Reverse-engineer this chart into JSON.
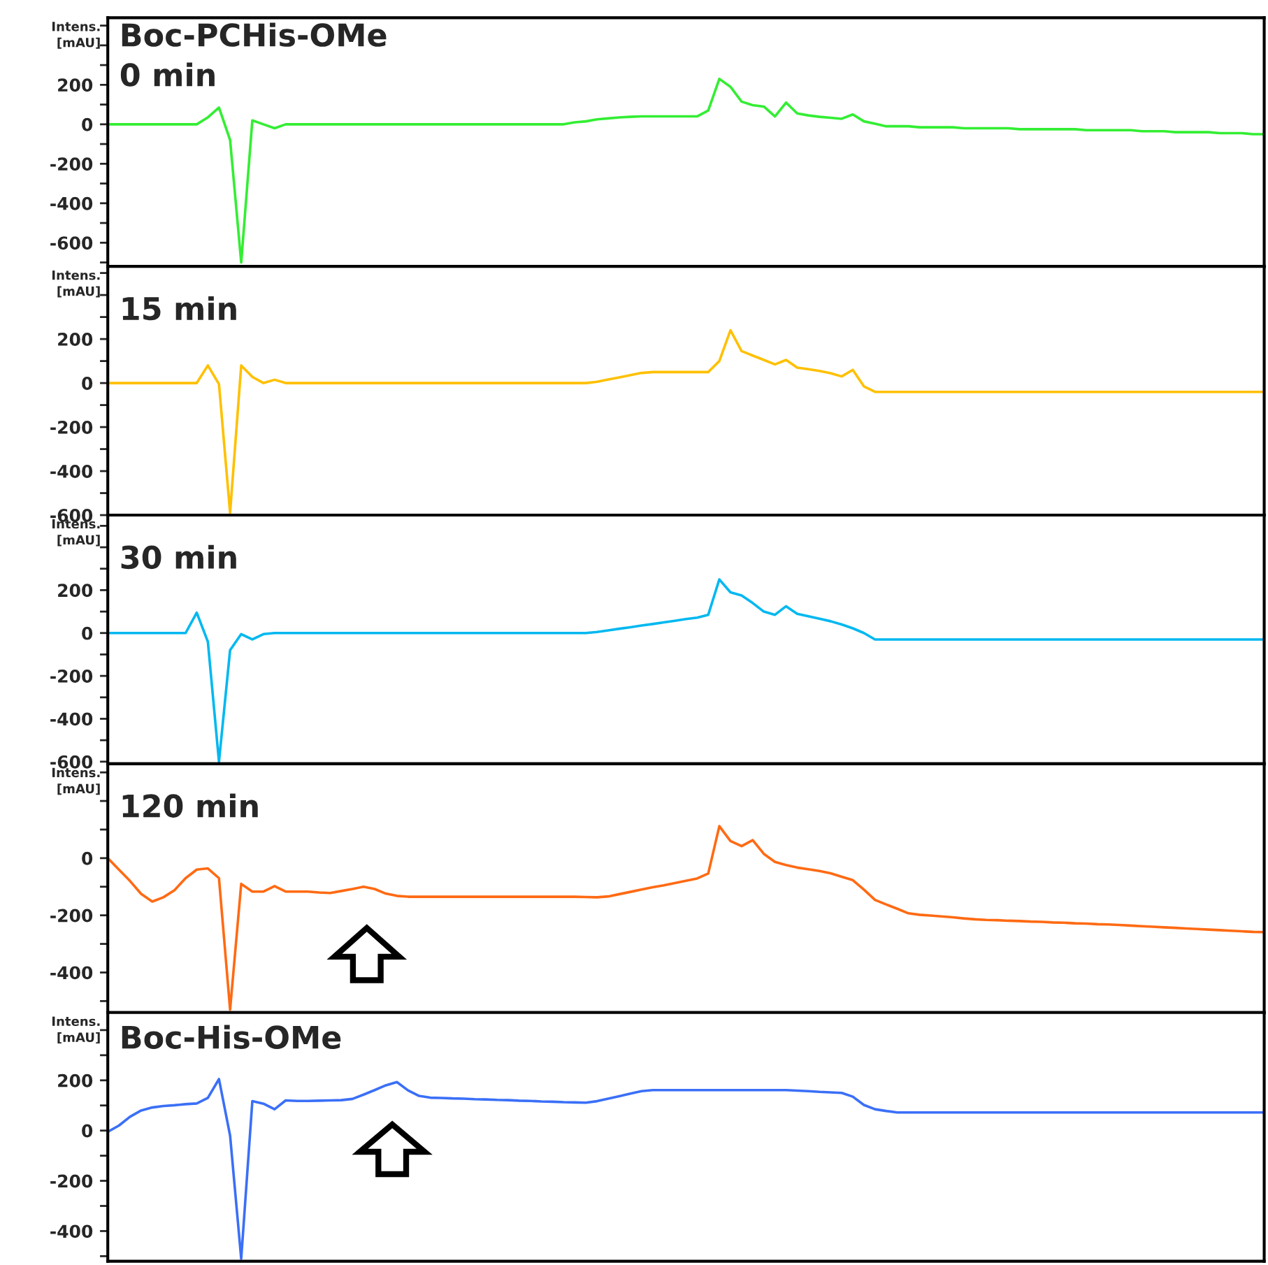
{
  "chart_data": [
    {
      "type": "line",
      "title": "Boc-PCHis-OMe",
      "subtitle": "0 min",
      "ylabel": "Intens.\n[mAU]",
      "ylim": [
        -720,
        540
      ],
      "tick_labels": "y",
      "grid": false,
      "legend": false,
      "categories": [
        null,
        null,
        null,
        null,
        null,
        null,
        null,
        null,
        null,
        null,
        null,
        null,
        null,
        null,
        null,
        null,
        null,
        null,
        null,
        null,
        null,
        null,
        null,
        null,
        null,
        null,
        null,
        null,
        null,
        null,
        null,
        null,
        null,
        null,
        null,
        null,
        null,
        null,
        null,
        null,
        null,
        null,
        null,
        null,
        null,
        null,
        null,
        null,
        null,
        null,
        null,
        null,
        null,
        null,
        null,
        null,
        null,
        null,
        null,
        null,
        null,
        null,
        null,
        null,
        null,
        null,
        null,
        null,
        null,
        null,
        null,
        null,
        null,
        null,
        null,
        null,
        null,
        null,
        null,
        null,
        null,
        null,
        null,
        null,
        null,
        null,
        null,
        null,
        null,
        null,
        null,
        null,
        null,
        null,
        null,
        null,
        null,
        null,
        null,
        null,
        null,
        null,
        null,
        null,
        null
      ],
      "yticks": [
        {
          "value": -700,
          "label": null
        },
        -600,
        {
          "value": -500,
          "label": null
        },
        -400,
        {
          "value": -300,
          "label": null
        },
        -200,
        {
          "value": -100,
          "label": null
        },
        0,
        {
          "value": 100,
          "label": null
        },
        200,
        {
          "value": 300,
          "label": null
        },
        {
          "value": 400,
          "label": null
        },
        {
          "value": 500,
          "label": null
        }
      ],
      "series": [
        {
          "color": "#33ee33",
          "values": [
            0,
            0,
            0,
            0,
            0,
            0,
            0,
            0,
            0,
            35,
            85,
            -80,
            -700,
            20,
            0,
            -20,
            0,
            0,
            0,
            0,
            0,
            0,
            0,
            0,
            0,
            0,
            0,
            0,
            0,
            0,
            0,
            0,
            0,
            0,
            0,
            0,
            0,
            0,
            0,
            0,
            0,
            0,
            10,
            15,
            25,
            30,
            35,
            38,
            40,
            40,
            40,
            40,
            40,
            40,
            70,
            230,
            190,
            115,
            97,
            90,
            40,
            110,
            55,
            45,
            38,
            33,
            28,
            50,
            15,
            3,
            -10,
            -10,
            -10,
            -15,
            -15,
            -15,
            -15,
            -20,
            -20,
            -20,
            -20,
            -20,
            -25,
            -25,
            -25,
            -25,
            -25,
            -25,
            -30,
            -30,
            -30,
            -30,
            -30,
            -35,
            -35,
            -35,
            -40,
            -40,
            -40,
            -40,
            -45,
            -45,
            -45,
            -50,
            -50
          ]
        }
      ]
    },
    {
      "type": "line",
      "title": "15 min",
      "ylabel": "Intens.\n[mAU]",
      "ylim": [
        -600,
        530
      ],
      "tick_labels": "y",
      "grid": false,
      "legend": false,
      "categories": [
        null,
        null,
        null,
        null,
        null,
        null,
        null,
        null,
        null,
        null,
        null,
        null,
        null,
        null,
        null,
        null,
        null,
        null,
        null,
        null,
        null,
        null,
        null,
        null,
        null,
        null,
        null,
        null,
        null,
        null,
        null,
        null,
        null,
        null,
        null,
        null,
        null,
        null,
        null,
        null,
        null,
        null,
        null,
        null,
        null,
        null,
        null,
        null,
        null,
        null,
        null,
        null,
        null,
        null,
        null,
        null,
        null,
        null,
        null,
        null,
        null,
        null,
        null,
        null,
        null,
        null,
        null,
        null,
        null,
        null,
        null,
        null,
        null,
        null,
        null,
        null,
        null,
        null,
        null,
        null,
        null,
        null,
        null,
        null,
        null,
        null,
        null,
        null,
        null,
        null,
        null,
        null,
        null,
        null,
        null,
        null,
        null,
        null,
        null,
        null,
        null,
        null,
        null,
        null,
        null
      ],
      "yticks": [
        -600,
        {
          "value": -500,
          "label": null
        },
        -400,
        {
          "value": -300,
          "label": null
        },
        -200,
        {
          "value": -100,
          "label": null
        },
        0,
        {
          "value": 100,
          "label": null
        },
        200,
        {
          "value": 300,
          "label": null
        },
        {
          "value": 400,
          "label": null
        },
        {
          "value": 500,
          "label": null
        }
      ],
      "series": [
        {
          "color": "#ffc000",
          "values": [
            0,
            0,
            0,
            0,
            0,
            0,
            0,
            0,
            0,
            80,
            -5,
            -590,
            80,
            28,
            0,
            15,
            0,
            0,
            0,
            0,
            0,
            0,
            0,
            0,
            0,
            0,
            0,
            0,
            0,
            0,
            0,
            0,
            0,
            0,
            0,
            0,
            0,
            0,
            0,
            0,
            0,
            0,
            0,
            0,
            6,
            16,
            26,
            36,
            46,
            50,
            50,
            50,
            50,
            50,
            50,
            100,
            240,
            145,
            125,
            105,
            85,
            105,
            70,
            63,
            55,
            45,
            30,
            60,
            -15,
            -40,
            -40,
            -40,
            -40,
            -40,
            -40,
            -40,
            -40,
            -40,
            -40,
            -40,
            -40,
            -40,
            -40,
            -40,
            -40,
            -40,
            -40,
            -40,
            -40,
            -40,
            -40,
            -40,
            -40,
            -40,
            -40,
            -40,
            -40,
            -40,
            -40,
            -40,
            -40,
            -40,
            -40,
            -40,
            -40
          ]
        }
      ]
    },
    {
      "type": "line",
      "title": "30 min",
      "ylabel": "Intens.\n[mAU]",
      "ylim": [
        -610,
        550
      ],
      "tick_labels": "y",
      "grid": false,
      "legend": false,
      "categories": [
        null,
        null,
        null,
        null,
        null,
        null,
        null,
        null,
        null,
        null,
        null,
        null,
        null,
        null,
        null,
        null,
        null,
        null,
        null,
        null,
        null,
        null,
        null,
        null,
        null,
        null,
        null,
        null,
        null,
        null,
        null,
        null,
        null,
        null,
        null,
        null,
        null,
        null,
        null,
        null,
        null,
        null,
        null,
        null,
        null,
        null,
        null,
        null,
        null,
        null,
        null,
        null,
        null,
        null,
        null,
        null,
        null,
        null,
        null,
        null,
        null,
        null,
        null,
        null,
        null,
        null,
        null,
        null,
        null,
        null,
        null,
        null,
        null,
        null,
        null,
        null,
        null,
        null,
        null,
        null,
        null,
        null,
        null,
        null,
        null,
        null,
        null,
        null,
        null,
        null,
        null,
        null,
        null,
        null,
        null,
        null,
        null,
        null,
        null,
        null,
        null,
        null,
        null,
        null,
        null
      ],
      "yticks": [
        -600,
        {
          "value": -500,
          "label": null
        },
        -400,
        {
          "value": -300,
          "label": null
        },
        -200,
        {
          "value": -100,
          "label": null
        },
        0,
        {
          "value": 100,
          "label": null
        },
        200,
        {
          "value": 300,
          "label": null
        },
        {
          "value": 400,
          "label": null
        },
        {
          "value": 500,
          "label": null
        }
      ],
      "series": [
        {
          "color": "#00b8f0",
          "values": [
            0,
            0,
            0,
            0,
            0,
            0,
            0,
            0,
            95,
            -40,
            -600,
            -80,
            -5,
            -30,
            -5,
            0,
            0,
            0,
            0,
            0,
            0,
            0,
            0,
            0,
            0,
            0,
            0,
            0,
            0,
            0,
            0,
            0,
            0,
            0,
            0,
            0,
            0,
            0,
            0,
            0,
            0,
            0,
            0,
            0,
            5,
            12,
            20,
            27,
            35,
            42,
            50,
            57,
            65,
            72,
            85,
            250,
            190,
            175,
            140,
            100,
            85,
            125,
            90,
            78,
            67,
            55,
            40,
            22,
            0,
            -30,
            -30,
            -30,
            -30,
            -30,
            -30,
            -30,
            -30,
            -30,
            -30,
            -30,
            -30,
            -30,
            -30,
            -30,
            -30,
            -30,
            -30,
            -30,
            -30,
            -30,
            -30,
            -30,
            -30,
            -30,
            -30,
            -30,
            -30,
            -30,
            -30,
            -30,
            -30,
            -30,
            -30,
            -30,
            -30
          ]
        }
      ]
    },
    {
      "type": "line",
      "title": "120 min",
      "ylabel": "Intens.\n[mAU]",
      "ylim": [
        -540,
        330
      ],
      "tick_labels": "y",
      "grid": false,
      "legend": false,
      "categories": [
        null,
        null,
        null,
        null,
        null,
        null,
        null,
        null,
        null,
        null,
        null,
        null,
        null,
        null,
        null,
        null,
        null,
        null,
        null,
        null,
        null,
        null,
        null,
        null,
        null,
        null,
        null,
        null,
        null,
        null,
        null,
        null,
        null,
        null,
        null,
        null,
        null,
        null,
        null,
        null,
        null,
        null,
        null,
        null,
        null,
        null,
        null,
        null,
        null,
        null,
        null,
        null,
        null,
        null,
        null,
        null,
        null,
        null,
        null,
        null,
        null,
        null,
        null,
        null,
        null,
        null,
        null,
        null,
        null,
        null,
        null,
        null,
        null,
        null,
        null,
        null,
        null,
        null,
        null,
        null,
        null,
        null,
        null,
        null,
        null,
        null,
        null,
        null,
        null,
        null,
        null,
        null,
        null,
        null,
        null,
        null,
        null,
        null,
        null,
        null,
        null,
        null,
        null,
        null,
        null
      ],
      "yticks": [
        {
          "value": -500,
          "label": null
        },
        -400,
        {
          "value": -300,
          "label": null
        },
        -200,
        {
          "value": -100,
          "label": null
        },
        0,
        {
          "value": 100,
          "label": null
        },
        {
          "value": 200,
          "label": null
        },
        {
          "value": 300,
          "label": null
        }
      ],
      "series": [
        {
          "color": "#ff6a13",
          "values": [
            0,
            -40,
            -80,
            -125,
            -152,
            -137,
            -112,
            -70,
            -40,
            -36,
            -70,
            -530,
            -90,
            -117,
            -117,
            -98,
            -117,
            -117,
            -117,
            -120,
            -122,
            -115,
            -108,
            -100,
            -108,
            -124,
            -132,
            -135,
            -135,
            -135,
            -135,
            -135,
            -135,
            -135,
            -135,
            -135,
            -135,
            -135,
            -135,
            -135,
            -135,
            -135,
            -135,
            -136,
            -137,
            -134,
            -126,
            -118,
            -110,
            -102,
            -95,
            -87,
            -79,
            -71,
            -54,
            112,
            60,
            42,
            63,
            15,
            -13,
            -24,
            -33,
            -39,
            -45,
            -53,
            -65,
            -77,
            -110,
            -146,
            -162,
            -177,
            -193,
            -198,
            -201,
            -204,
            -207,
            -211,
            -214,
            -216,
            -217,
            -219,
            -220,
            -222,
            -223,
            -225,
            -226,
            -228,
            -229,
            -231,
            -232,
            -234,
            -236,
            -238,
            -240,
            -242,
            -244,
            -246,
            -248,
            -250,
            -252,
            -254,
            -256,
            -258,
            -259
          ]
        }
      ]
    },
    {
      "type": "line",
      "title": "Boc-His-OMe",
      "ylabel": "Intens.\n[mAU]",
      "ylim": [
        -520,
        470
      ],
      "tick_labels": "y",
      "grid": false,
      "legend": false,
      "categories": [
        null,
        null,
        null,
        null,
        null,
        null,
        null,
        null,
        null,
        null,
        null,
        null,
        null,
        null,
        null,
        null,
        null,
        null,
        null,
        null,
        null,
        null,
        null,
        null,
        null,
        null,
        null,
        null,
        null,
        null,
        null,
        null,
        null,
        null,
        null,
        null,
        null,
        null,
        null,
        null,
        null,
        null,
        null,
        null,
        null,
        null,
        null,
        null,
        null,
        null,
        null,
        null,
        null,
        null,
        null,
        null,
        null,
        null,
        null,
        null,
        null,
        null,
        null,
        null,
        null,
        null,
        null,
        null,
        null,
        null,
        null,
        null,
        null,
        null,
        null,
        null,
        null,
        null,
        null,
        null,
        null,
        null,
        null,
        null,
        null,
        null,
        null,
        null,
        null,
        null,
        null,
        null,
        null,
        null,
        null,
        null,
        null,
        null,
        null,
        null,
        null,
        null,
        null,
        null,
        null
      ],
      "yticks": [
        {
          "value": -500,
          "label": null
        },
        -400,
        {
          "value": -300,
          "label": null
        },
        -200,
        {
          "value": -100,
          "label": null
        },
        0,
        {
          "value": 100,
          "label": null
        },
        200,
        {
          "value": 300,
          "label": null
        },
        {
          "value": 400,
          "label": null
        }
      ],
      "series": [
        {
          "color": "#3a6ff7",
          "values": [
            -5,
            20,
            55,
            80,
            92,
            98,
            101,
            105,
            108,
            130,
            205,
            -20,
            -510,
            117,
            107,
            85,
            120,
            118,
            118,
            119,
            120,
            121,
            126,
            143,
            161,
            180,
            193,
            160,
            138,
            131,
            130,
            128,
            127,
            125,
            124,
            122,
            121,
            119,
            118,
            116,
            115,
            113,
            112,
            111,
            117,
            127,
            137,
            147,
            157,
            161,
            161,
            161,
            161,
            161,
            161,
            161,
            161,
            161,
            161,
            161,
            161,
            161,
            159,
            157,
            154,
            152,
            150,
            135,
            102,
            85,
            78,
            72,
            72,
            72,
            72,
            72,
            72,
            72,
            72,
            72,
            72,
            72,
            72,
            72,
            72,
            72,
            72,
            72,
            72,
            72,
            72,
            72,
            72,
            72,
            72,
            72,
            72,
            72,
            72,
            72,
            72,
            72,
            72,
            72,
            72
          ]
        }
      ]
    }
  ]
}
